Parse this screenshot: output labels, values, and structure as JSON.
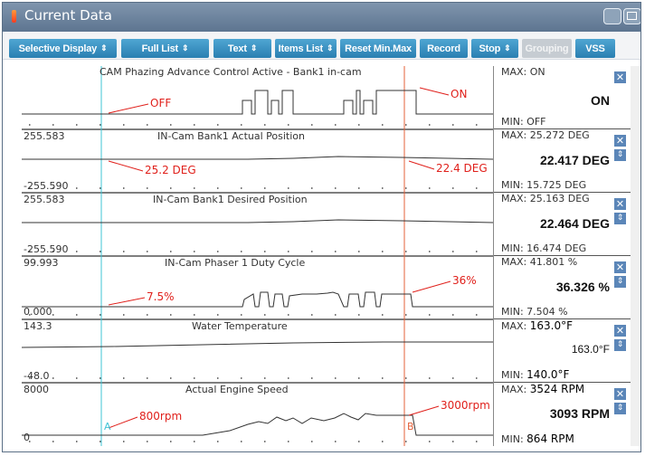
{
  "window": {
    "title": "Current Data"
  },
  "toolbar": {
    "buttons": [
      {
        "label": "Selective Display",
        "dropdown": true
      },
      {
        "label": "Full List",
        "dropdown": true
      },
      {
        "label": "Text",
        "dropdown": true
      },
      {
        "label": "Items List",
        "dropdown": true
      },
      {
        "label": "Reset Min.Max",
        "dropdown": false
      },
      {
        "label": "Record",
        "dropdown": false
      },
      {
        "label": "Stop",
        "dropdown": true
      },
      {
        "label": "Grouping",
        "dropdown": false,
        "disabled": true
      },
      {
        "label": "VSS",
        "dropdown": false
      }
    ]
  },
  "panels": [
    {
      "title": "CAM Phazing Advance Control Active - Bank1 in-cam",
      "scale_top": "",
      "scale_bottom": "",
      "max": "MAX: ON",
      "min": "MIN: OFF",
      "current": "ON"
    },
    {
      "title": "IN-Cam Bank1 Actual Position",
      "scale_top": "255.583",
      "scale_bottom": "-255.590",
      "max": "MAX: 25.272 DEG",
      "min": "MIN: 15.725 DEG",
      "current": "22.417 DEG"
    },
    {
      "title": "IN-Cam Bank1 Desired Position",
      "scale_top": "255.583",
      "scale_bottom": "-255.590",
      "max": "MAX: 25.163 DEG",
      "min": "MIN: 16.474 DEG",
      "current": "22.464 DEG"
    },
    {
      "title": "IN-Cam Phaser 1 Duty Cycle",
      "scale_top": "99.993",
      "scale_bottom": "0.000",
      "max": "MAX: 41.801 %",
      "min": "MIN: 7.504 %",
      "current": "36.326 %"
    },
    {
      "title": "Water Temperature",
      "scale_top": "143.3",
      "scale_bottom": "-48.0",
      "max_label": "MAX:",
      "max_value": "163.0°F",
      "min_label": "MIN:",
      "min_value": "140.0°F",
      "current": "163.0°F"
    },
    {
      "title": "Actual Engine Speed",
      "scale_top": "8000",
      "scale_bottom": "0",
      "max_label": "MAX:",
      "max_value": "3524 RPM",
      "min_label": "MIN:",
      "min_value": "864 RPM",
      "current": "3093 RPM"
    }
  ],
  "annotations": {
    "off": "OFF",
    "on": "ON",
    "deg_left": "25.2 DEG",
    "deg_right": "22.4 DEG",
    "duty_left": "7.5%",
    "duty_right": "36%",
    "rpm_left": "800rpm",
    "rpm_right": "3000rpm",
    "cursor_a": "A",
    "cursor_b": "B"
  },
  "colors": {
    "titlebar": "#6a819b",
    "button": "#3a93c4",
    "cursor_a": "#3fc4d6",
    "cursor_b": "#e4603a",
    "annotation": "#e0201b"
  }
}
